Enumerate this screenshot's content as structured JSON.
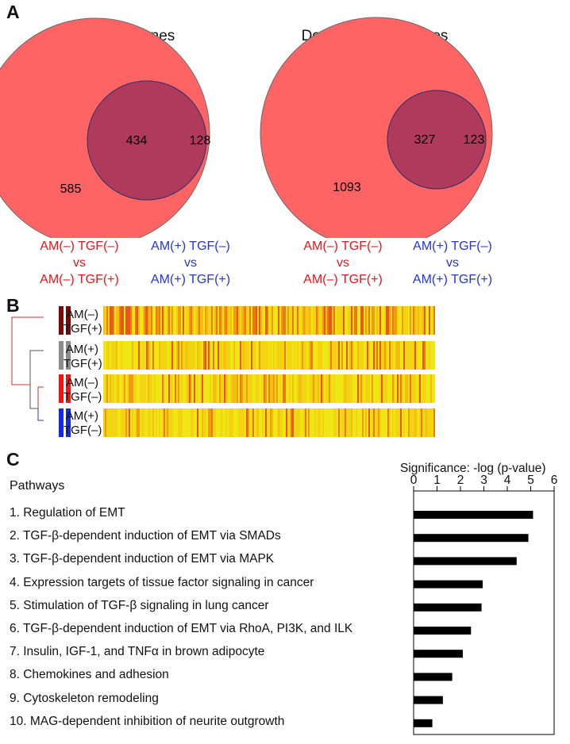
{
  "panels": {
    "a": "A",
    "b": "B",
    "c": "C"
  },
  "venn": [
    {
      "title": "Upregulated genes",
      "red_only": "585",
      "overlap": "434",
      "blue_only": "128",
      "red_comparison": [
        "AM(–) TGF(–)",
        "vs",
        "AM(–) TGF(+)"
      ],
      "blue_comparison": [
        "AM(+) TGF(–)",
        "vs",
        "AM(+) TGF(+)"
      ]
    },
    {
      "title": "Downregulated genes",
      "red_only": "1093",
      "overlap": "327",
      "blue_only": "123",
      "red_comparison": [
        "AM(–) TGF(–)",
        "vs",
        "AM(–) TGF(+)"
      ],
      "blue_comparison": [
        "AM(+) TGF(–)",
        "vs",
        "AM(+) TGF(+)"
      ]
    }
  ],
  "colors": {
    "venn_red": "#ff6464",
    "venn_blue": "#4b78f0",
    "venn_overlap": "#b03a5c",
    "cmp_red": "#e8141b",
    "cmp_blue": "#2434d6",
    "bar": "#000000"
  },
  "heatmap": {
    "rows": [
      {
        "line1": "AM(–)",
        "line2": "TGF(+)",
        "swatch": "#7a0a0a"
      },
      {
        "line1": "AM(+)",
        "line2": "TGF(+)",
        "swatch": "#8c8c8c"
      },
      {
        "line1": "AM(–)",
        "line2": "TGF(–)",
        "swatch": "#f01414"
      },
      {
        "line1": "AM(+)",
        "line2": "TGF(–)",
        "swatch": "#1428e6"
      }
    ]
  },
  "chart_data": {
    "type": "bar",
    "orientation": "horizontal",
    "title": "Pathways",
    "xlabel": "Significance: -log (p-value)",
    "xlim": [
      0,
      6
    ],
    "xticks": [
      "0",
      "1",
      "2",
      "3",
      "4",
      "5",
      "6"
    ],
    "categories": [
      "1. Regulation of EMT",
      "2. TGF-β-dependent induction of EMT via SMADs",
      "3. TGF-β-dependent induction of EMT via MAPK",
      "4. Expression targets of tissue factor signaling in cancer",
      "5. Stimulation of TGF-β signaling in lung cancer",
      "6. TGF-β-dependent induction of EMT via RhoA, PI3K, and ILK",
      "7. Insulin, IGF-1, and TNFα in brown adipocyte",
      "8. Chemokines and adhesion",
      "9. Cytoskeleton remodeling",
      "10. MAG-dependent inhibition of neurite outgrowth"
    ],
    "values": [
      5.1,
      4.9,
      4.4,
      2.95,
      2.9,
      2.45,
      2.1,
      1.65,
      1.25,
      0.8
    ],
    "grid": false
  }
}
